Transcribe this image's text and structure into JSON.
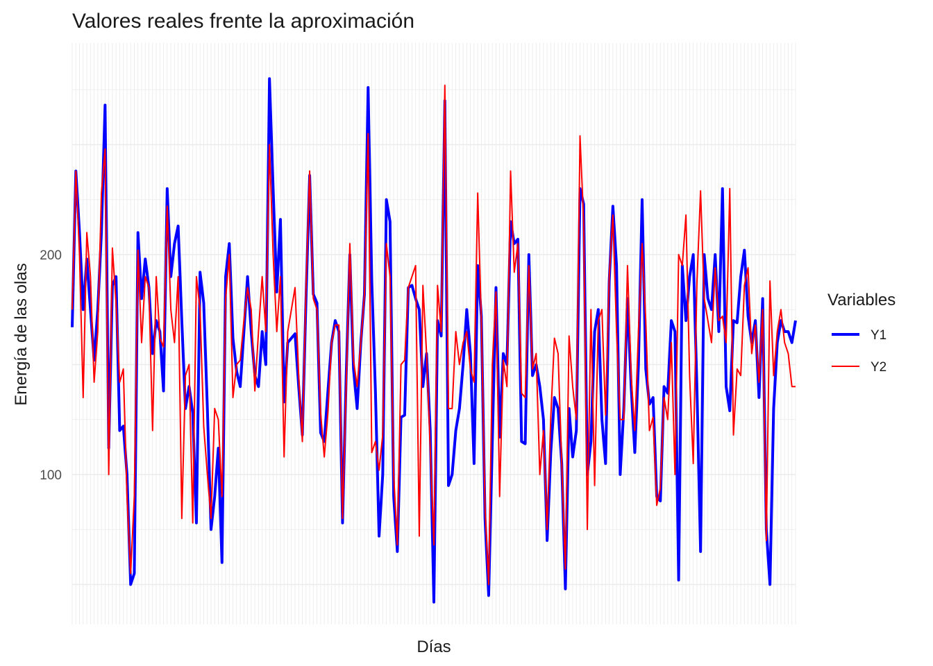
{
  "chart_data": {
    "type": "line",
    "title": "Valores reales frente la aproximación",
    "xlabel": "Días",
    "ylabel": "Energía de las olas",
    "x_ticks_shown": false,
    "ylim": [
      31,
      282
    ],
    "y_ticks": [
      100,
      200
    ],
    "grid": true,
    "legend": {
      "title": "Variables",
      "position": "right"
    },
    "colors": {
      "Y1": "#0000ff",
      "Y2": "#ff0000",
      "grid": "#ebebeb"
    },
    "series": [
      {
        "name": "Y1",
        "values": [
          167,
          238,
          210,
          175,
          198,
          175,
          152,
          175,
          210,
          268,
          112,
          186,
          190,
          120,
          122,
          100,
          50,
          55,
          210,
          180,
          198,
          185,
          155,
          170,
          165,
          138,
          230,
          190,
          205,
          213,
          170,
          130,
          140,
          128,
          78,
          192,
          178,
          130,
          75,
          90,
          112,
          60,
          190,
          205,
          162,
          147,
          140,
          165,
          190,
          165,
          145,
          140,
          165,
          150,
          280,
          230,
          183,
          216,
          133,
          160,
          162,
          164,
          140,
          118,
          180,
          236,
          182,
          178,
          119,
          115,
          138,
          160,
          170,
          165,
          78,
          145,
          200,
          148,
          130,
          160,
          182,
          276,
          188,
          138,
          72,
          100,
          225,
          215,
          90,
          65,
          126,
          127,
          185,
          186,
          180,
          175,
          140,
          155,
          120,
          42,
          170,
          163,
          270,
          95,
          100,
          120,
          130,
          150,
          175,
          155,
          105,
          195,
          172,
          80,
          45,
          115,
          185,
          117,
          155,
          150,
          215,
          205,
          207,
          115,
          114,
          200,
          145,
          150,
          140,
          125,
          70,
          110,
          135,
          130,
          105,
          48,
          130,
          108,
          120,
          230,
          223,
          100,
          115,
          165,
          175,
          125,
          105,
          188,
          222,
          195,
          100,
          130,
          180,
          140,
          110,
          150,
          225,
          148,
          132,
          135,
          90,
          88,
          140,
          137,
          170,
          165,
          52,
          195,
          170,
          190,
          200,
          140,
          65,
          200,
          180,
          175,
          200,
          165,
          230,
          140,
          129,
          170,
          169,
          190,
          202,
          172,
          160,
          170,
          135,
          180,
          75,
          50,
          130,
          160,
          170,
          165,
          165,
          160,
          170
        ]
      },
      {
        "name": "Y2",
        "values": [
          175,
          238,
          200,
          135,
          210,
          190,
          142,
          165,
          228,
          248,
          100,
          203,
          178,
          142,
          148,
          90,
          55,
          90,
          202,
          160,
          190,
          185,
          120,
          190,
          162,
          158,
          222,
          175,
          160,
          190,
          80,
          145,
          150,
          78,
          190,
          175,
          122,
          100,
          80,
          130,
          125,
          90,
          180,
          200,
          135,
          150,
          152,
          170,
          185,
          175,
          138,
          165,
          190,
          165,
          250,
          200,
          165,
          190,
          108,
          165,
          175,
          185,
          145,
          115,
          185,
          238,
          180,
          175,
          128,
          108,
          128,
          160,
          168,
          168,
          80,
          140,
          205,
          152,
          140,
          160,
          182,
          255,
          110,
          115,
          102,
          118,
          205,
          190,
          100,
          68,
          150,
          152,
          185,
          190,
          195,
          72,
          186,
          155,
          112,
          68,
          186,
          165,
          277,
          130,
          130,
          165,
          150,
          160,
          165,
          148,
          142,
          228,
          170,
          85,
          50,
          150,
          183,
          90,
          152,
          140,
          238,
          192,
          205,
          137,
          135,
          195,
          148,
          155,
          100,
          120,
          75,
          126,
          162,
          155,
          105,
          57,
          163,
          140,
          125,
          254,
          215,
          75,
          175,
          95,
          170,
          175,
          127,
          190,
          218,
          165,
          125,
          125,
          195,
          145,
          120,
          165,
          205,
          170,
          120,
          126,
          86,
          94,
          135,
          125,
          160,
          100,
          200,
          195,
          218,
          145,
          105,
          187,
          229,
          180,
          170,
          160,
          194,
          170,
          172,
          160,
          230,
          118,
          148,
          145,
          186,
          194,
          155,
          168,
          142,
          175,
          70,
          188,
          145,
          165,
          175,
          160,
          155,
          140,
          140
        ]
      }
    ]
  }
}
